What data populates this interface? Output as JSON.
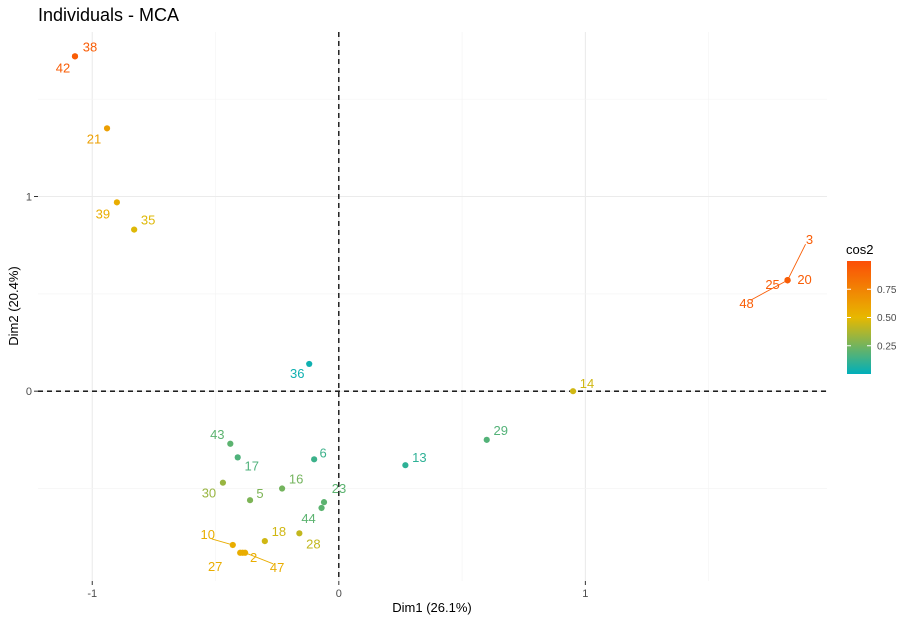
{
  "chart_data": {
    "type": "scatter",
    "title": "Individuals - MCA",
    "xlabel": "Dim1 (26.1%)",
    "ylabel": "Dim2 (20.4%)",
    "xlim": [
      -1.22,
      1.98
    ],
    "ylim": [
      -0.975,
      1.845
    ],
    "x_ticks": [
      -1,
      0,
      1
    ],
    "y_ticks": [
      0,
      1
    ],
    "grid": true,
    "reference_lines": {
      "x": 0,
      "y": 0,
      "style": "dashed"
    },
    "legend": {
      "title": "cos2",
      "position": "right",
      "range": [
        0.0,
        1.0
      ],
      "ticks": [
        0.25,
        0.5,
        0.75
      ],
      "tick_labels": [
        "0.25",
        "0.50",
        "0.75"
      ],
      "colors": [
        "#00AFBB",
        "#E7B800",
        "#FC4E07"
      ]
    },
    "points": [
      {
        "label": "38",
        "x": -1.07,
        "y": 1.72,
        "cos2": 0.93
      },
      {
        "label": "42",
        "x": -1.07,
        "y": 1.72,
        "cos2": 0.93
      },
      {
        "label": "21",
        "x": -0.94,
        "y": 1.35,
        "cos2": 0.62
      },
      {
        "label": "39",
        "x": -0.9,
        "y": 0.97,
        "cos2": 0.55
      },
      {
        "label": "35",
        "x": -0.83,
        "y": 0.83,
        "cos2": 0.48
      },
      {
        "label": "3",
        "x": 1.82,
        "y": 0.57,
        "cos2": 0.93
      },
      {
        "label": "20",
        "x": 1.82,
        "y": 0.57,
        "cos2": 0.93
      },
      {
        "label": "25",
        "x": 1.82,
        "y": 0.57,
        "cos2": 0.93
      },
      {
        "label": "48",
        "x": 1.82,
        "y": 0.57,
        "cos2": 0.93
      },
      {
        "label": "36",
        "x": -0.12,
        "y": 0.14,
        "cos2": 0.03
      },
      {
        "label": "14",
        "x": 0.95,
        "y": 0.0,
        "cos2": 0.45
      },
      {
        "label": "29",
        "x": 0.6,
        "y": -0.25,
        "cos2": 0.18
      },
      {
        "label": "13",
        "x": 0.27,
        "y": -0.38,
        "cos2": 0.1
      },
      {
        "label": "6",
        "x": -0.1,
        "y": -0.35,
        "cos2": 0.13
      },
      {
        "label": "43",
        "x": -0.44,
        "y": -0.27,
        "cos2": 0.2
      },
      {
        "label": "17",
        "x": -0.41,
        "y": -0.34,
        "cos2": 0.17
      },
      {
        "label": "16",
        "x": -0.23,
        "y": -0.5,
        "cos2": 0.25
      },
      {
        "label": "30",
        "x": -0.47,
        "y": -0.47,
        "cos2": 0.33
      },
      {
        "label": "5",
        "x": -0.36,
        "y": -0.56,
        "cos2": 0.27
      },
      {
        "label": "23",
        "x": -0.06,
        "y": -0.57,
        "cos2": 0.2
      },
      {
        "label": "44",
        "x": -0.07,
        "y": -0.6,
        "cos2": 0.2
      },
      {
        "label": "28",
        "x": -0.16,
        "y": -0.73,
        "cos2": 0.42
      },
      {
        "label": "18",
        "x": -0.3,
        "y": -0.77,
        "cos2": 0.45
      },
      {
        "label": "10",
        "x": -0.43,
        "y": -0.79,
        "cos2": 0.55
      },
      {
        "label": "27",
        "x": -0.4,
        "y": -0.83,
        "cos2": 0.55
      },
      {
        "label": "2",
        "x": -0.39,
        "y": -0.83,
        "cos2": 0.55
      },
      {
        "label": "47",
        "x": -0.38,
        "y": -0.83,
        "cos2": 0.55
      }
    ]
  }
}
